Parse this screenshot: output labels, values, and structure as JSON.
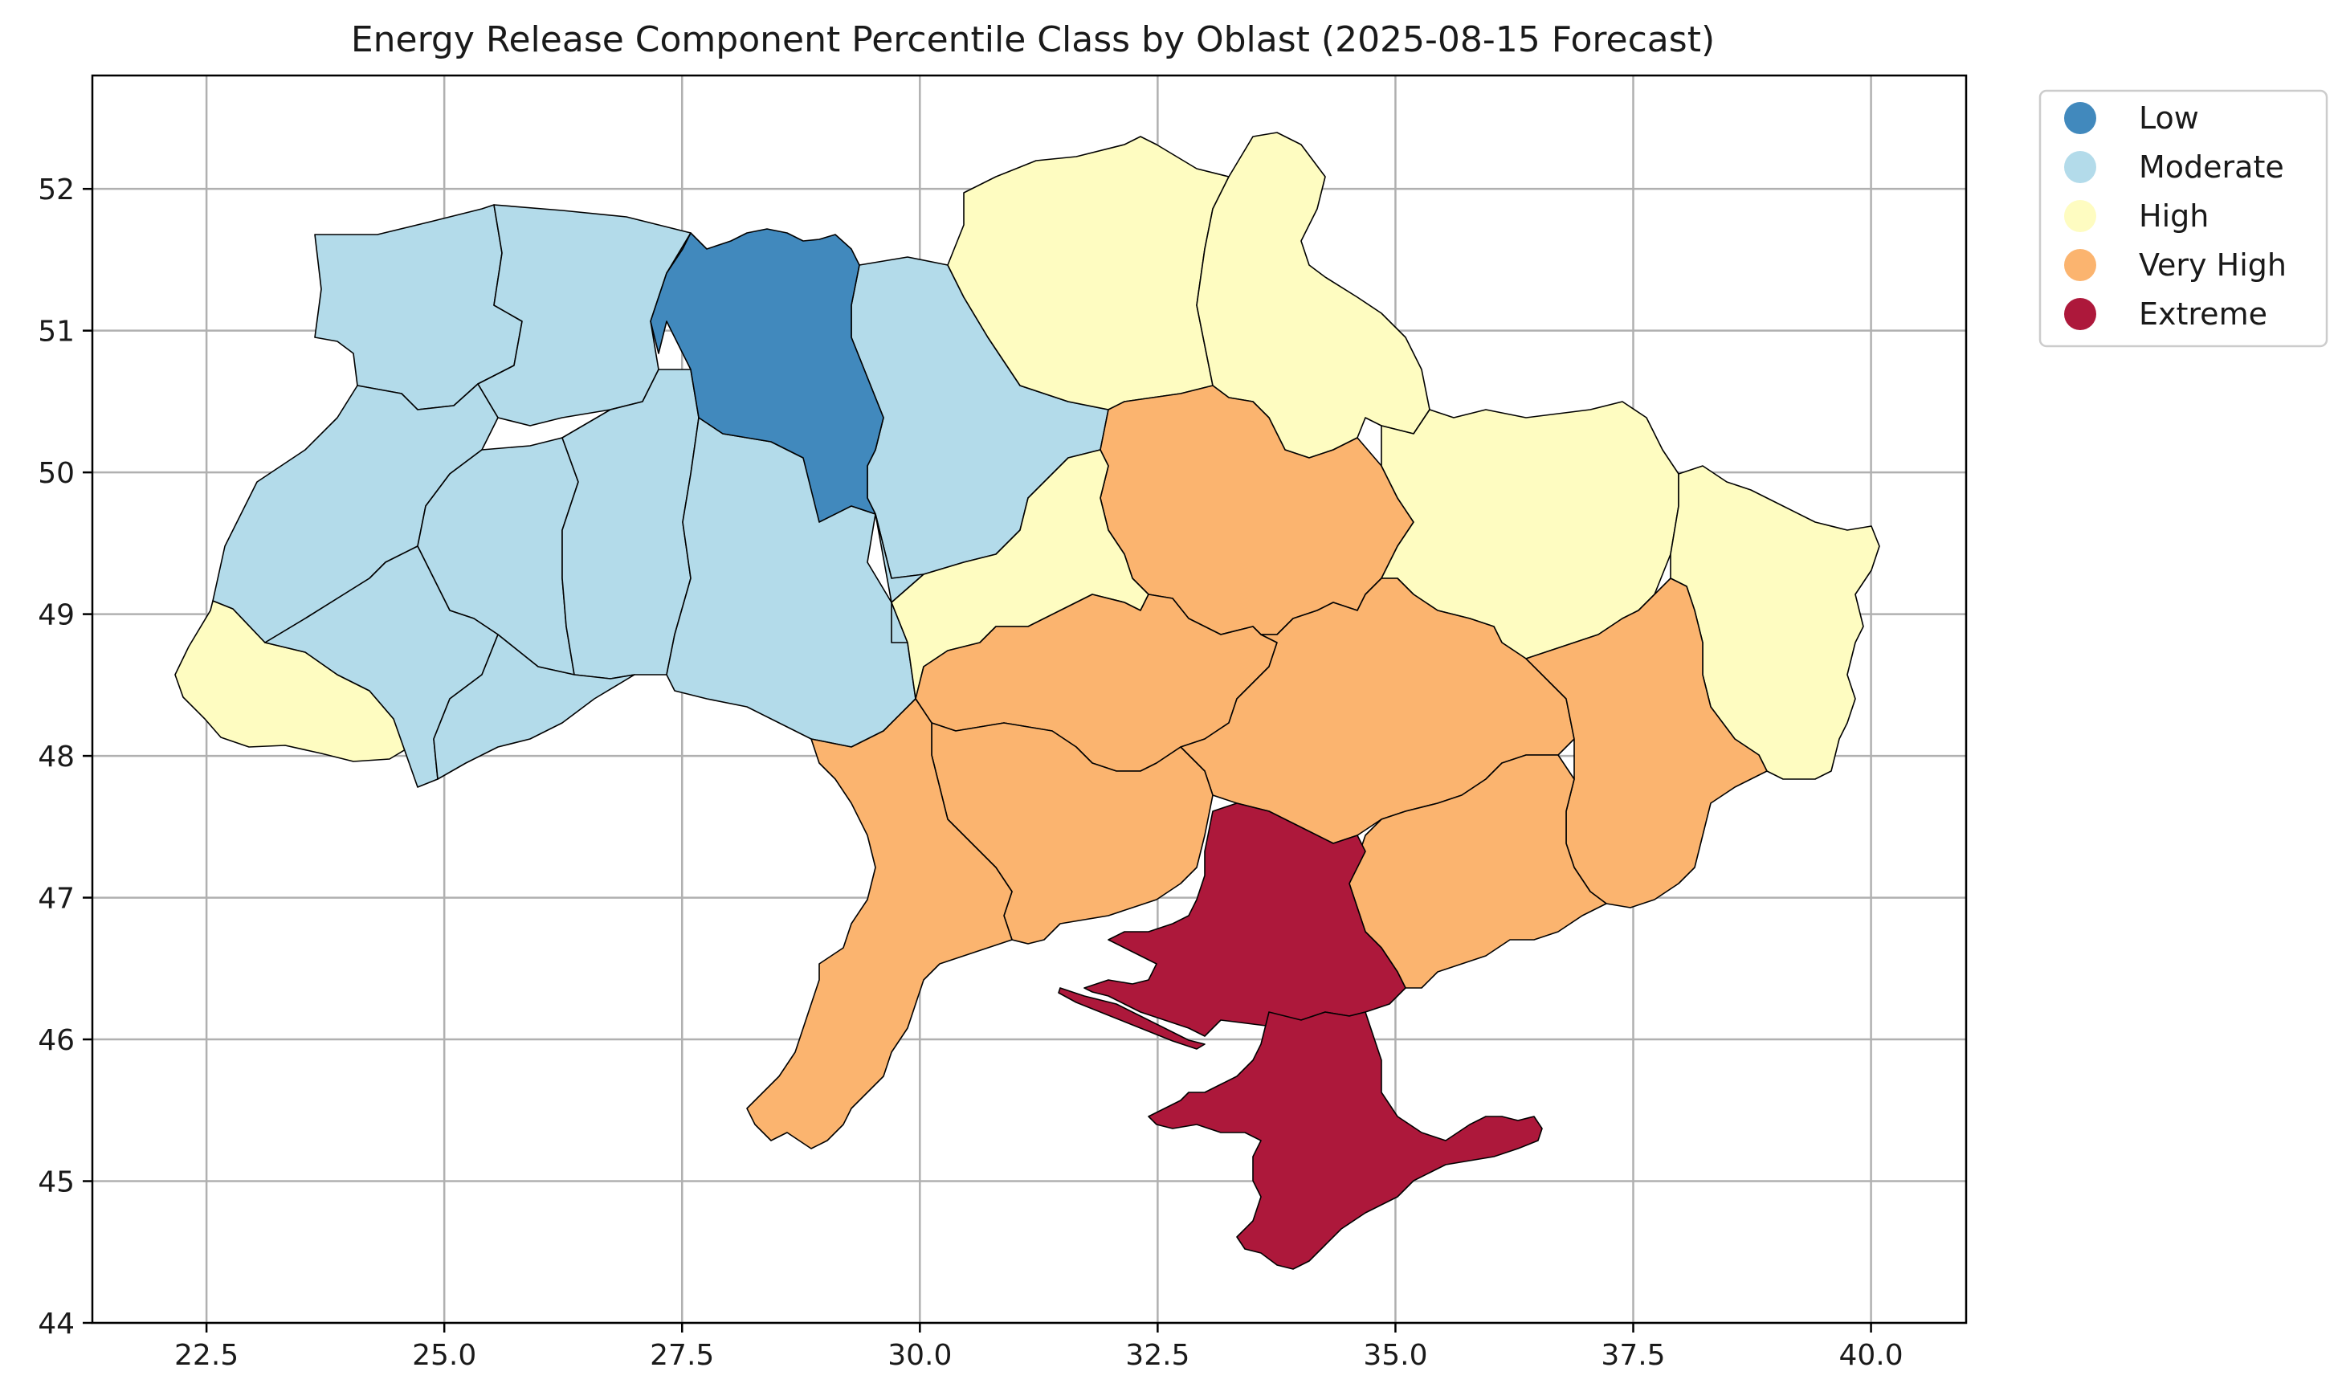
{
  "chart_data": {
    "type": "choropleth",
    "title": "Energy Release Component Percentile Class by Oblast (2025-08-15 Forecast)",
    "xlim": [
      21.3,
      41.0
    ],
    "ylim": [
      44.0,
      52.8
    ],
    "x_ticks": [
      "22.5",
      "25.0",
      "27.5",
      "30.0",
      "32.5",
      "35.0",
      "37.5",
      "40.0"
    ],
    "y_ticks": [
      "44",
      "45",
      "46",
      "47",
      "48",
      "49",
      "50",
      "51",
      "52"
    ],
    "grid": true,
    "legend_placement": "outside top-right",
    "legend": [
      {
        "label": "Low",
        "color": "#4189bd"
      },
      {
        "label": "Moderate",
        "color": "#b3dbea"
      },
      {
        "label": "High",
        "color": "#fefcc1"
      },
      {
        "label": "Very High",
        "color": "#fbb46f"
      },
      {
        "label": "Extreme",
        "color": "#ad183b"
      }
    ]
  }
}
